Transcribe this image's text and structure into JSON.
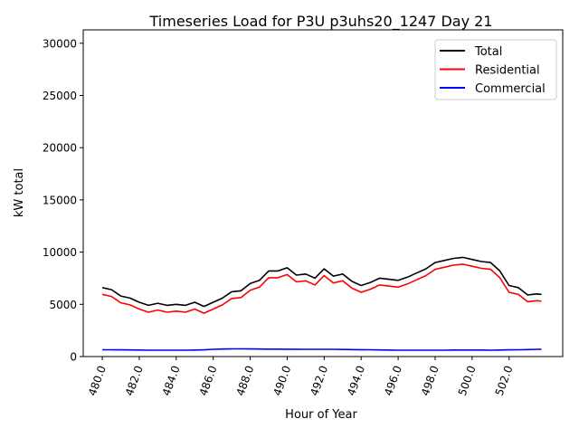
{
  "chart_data": {
    "type": "line",
    "title": "Timeseries Load for P3U p3uhs20_1247  Day 21",
    "xlabel": "Hour of Year",
    "ylabel": "kW total",
    "xlim": [
      478.97,
      504.9
    ],
    "ylim": [
      0,
      31280
    ],
    "xticks": [
      480,
      482,
      484,
      486,
      488,
      490,
      492,
      494,
      496,
      498,
      500,
      502
    ],
    "xtick_labels": [
      "480.0",
      "482.0",
      "484.0",
      "486.0",
      "488.0",
      "490.0",
      "492.0",
      "494.0",
      "496.0",
      "498.0",
      "500.0",
      "502.0"
    ],
    "yticks": [
      0,
      5000,
      10000,
      15000,
      20000,
      25000,
      30000
    ],
    "ytick_labels": [
      "0",
      "5000",
      "10000",
      "15000",
      "20000",
      "25000",
      "30000"
    ],
    "grid": false,
    "legend_position": "top-right",
    "x": [
      480,
      480.5,
      481,
      481.5,
      482,
      482.5,
      483,
      483.5,
      484,
      484.5,
      485,
      485.5,
      486,
      486.5,
      487,
      487.5,
      488,
      488.5,
      489,
      489.5,
      490,
      490.5,
      491,
      491.5,
      492,
      492.5,
      493,
      493.5,
      494,
      494.5,
      495,
      495.5,
      496,
      496.5,
      497,
      497.5,
      498,
      498.5,
      499,
      499.5,
      500,
      500.5,
      501,
      501.5,
      502,
      502.5,
      503,
      503.5,
      503.75
    ],
    "series": [
      {
        "name": "Total",
        "color": "#000000",
        "values": [
          6600,
          6400,
          5800,
          5600,
          5200,
          4900,
          5100,
          4900,
          5000,
          4900,
          5200,
          4800,
          5200,
          5600,
          6200,
          6300,
          7000,
          7300,
          8200,
          8200,
          8500,
          7800,
          7900,
          7500,
          8400,
          7700,
          7900,
          7200,
          6800,
          7100,
          7500,
          7400,
          7300,
          7600,
          8000,
          8400,
          9000,
          9200,
          9400,
          9500,
          9300,
          9100,
          9000,
          8200,
          6800,
          6600,
          5900,
          6000,
          5950
        ]
      },
      {
        "name": "Residential",
        "color": "#ff0000",
        "values": [
          5950,
          5750,
          5150,
          4950,
          4550,
          4250,
          4450,
          4250,
          4350,
          4250,
          4550,
          4150,
          4550,
          4950,
          5550,
          5650,
          6350,
          6650,
          7550,
          7550,
          7850,
          7150,
          7250,
          6850,
          7750,
          7050,
          7250,
          6550,
          6150,
          6450,
          6850,
          6750,
          6650,
          6950,
          7350,
          7750,
          8350,
          8550,
          8750,
          8850,
          8650,
          8450,
          8350,
          7550,
          6150,
          5950,
          5250,
          5350,
          5300
        ]
      },
      {
        "name": "Commercial",
        "color": "#0000ff",
        "values": [
          650,
          650,
          640,
          630,
          620,
          610,
          610,
          610,
          610,
          610,
          620,
          640,
          690,
          720,
          740,
          740,
          730,
          720,
          710,
          710,
          700,
          700,
          690,
          690,
          690,
          690,
          680,
          670,
          660,
          650,
          630,
          620,
          610,
          610,
          610,
          610,
          610,
          610,
          620,
          620,
          620,
          620,
          610,
          620,
          640,
          650,
          670,
          690,
          700
        ]
      }
    ]
  }
}
